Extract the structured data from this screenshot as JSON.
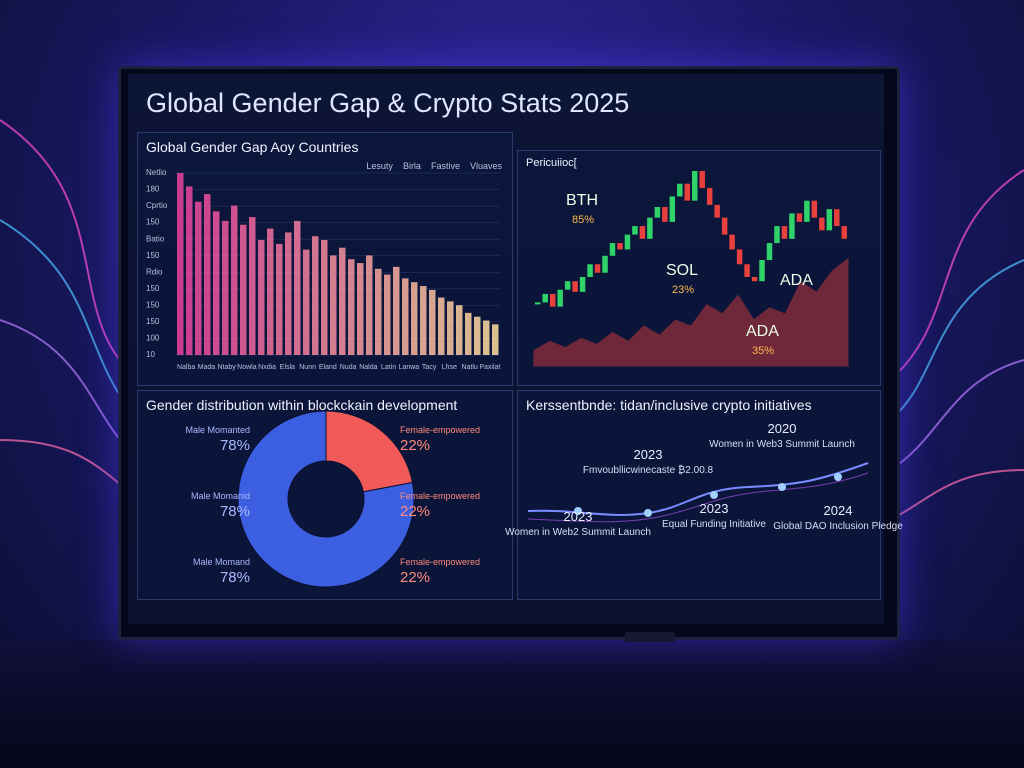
{
  "header": {
    "title": "Global Gender Gap & Crypto Stats 2025"
  },
  "bar_panel": {
    "title": "Global Gender Gap Aoy Countries",
    "legend": [
      "Lesuty",
      "Birla",
      "Fastive",
      "Vluaves"
    ],
    "y_labels": [
      "Netlio",
      "180",
      "Cprtio",
      "150",
      "Batio",
      "150",
      "Rdio",
      "150",
      "150",
      "150",
      "100",
      "10"
    ],
    "x_labels": [
      "Nalba",
      "Mada",
      "Ntaby",
      "Nowla",
      "Nxdia",
      "Elsla",
      "Nunn",
      "Eland",
      "Nuda",
      "Nalda",
      "Latin",
      "Lanwa",
      "Tacy",
      "Lhse",
      "Natlu",
      "Paxilat"
    ],
    "colors": [
      "#e0409a",
      "#f2d49a"
    ],
    "values": [
      95,
      88,
      80,
      84,
      75,
      70,
      78,
      68,
      72,
      60,
      66,
      58,
      64,
      70,
      55,
      62,
      60,
      52,
      56,
      50,
      48,
      52,
      45,
      42,
      46,
      40,
      38,
      36,
      34,
      30,
      28,
      26,
      22,
      20,
      18,
      16
    ]
  },
  "crypto_panel": {
    "title": "Pericuiioc[",
    "labels": [
      {
        "coin": "BTH",
        "change": "85%"
      },
      {
        "coin": "SOL",
        "change": "23%"
      },
      {
        "coin": "ADA",
        "change": ""
      },
      {
        "coin": "ADA",
        "change": "35%"
      }
    ],
    "up_color": "#2fd36a",
    "down_color": "#e8403c",
    "prices": [
      30,
      34,
      28,
      36,
      40,
      35,
      42,
      48,
      44,
      52,
      58,
      55,
      62,
      66,
      60,
      70,
      75,
      68,
      80,
      86,
      78,
      92,
      84,
      76,
      70,
      62,
      55,
      48,
      42,
      40,
      50,
      58,
      66,
      60,
      72,
      68,
      78,
      70,
      64,
      74,
      66,
      60
    ],
    "area": [
      10,
      16,
      12,
      18,
      14,
      22,
      16,
      26,
      20,
      30,
      26,
      40,
      34,
      46,
      30,
      38,
      34,
      55,
      48,
      62,
      70
    ]
  },
  "donut_panel": {
    "title": "Gender distribution within blockckain development",
    "segments": [
      {
        "name": "Female-empowered",
        "value": 22,
        "color": "#f25a5a"
      },
      {
        "name": "Male Momanted",
        "value": 78,
        "color": "#3b5fe0"
      }
    ],
    "left_labels": [
      {
        "name": "Male Momanted",
        "value": "78%"
      },
      {
        "name": "Male Momanid",
        "value": "78%"
      },
      {
        "name": "Male Momand",
        "value": "78%"
      }
    ],
    "right_labels": [
      {
        "name": "Female-empowered",
        "value": "22%"
      },
      {
        "name": "Female-empowered",
        "value": "22%"
      },
      {
        "name": "Female-empowered",
        "value": "22%"
      }
    ]
  },
  "timeline_panel": {
    "title": "Kerssentbnde: tidan/inclusive crypto initiatives",
    "events": [
      {
        "year": "2023",
        "text": "Women in Web2 Summit Launch"
      },
      {
        "year": "2023",
        "text": "Fmvoubllicwinecaste ₿2.00.8"
      },
      {
        "year": "2023",
        "text": "Equal Funding Initiative"
      },
      {
        "year": "2020",
        "text": "Women in Web3 Summit Launch"
      },
      {
        "year": "2024",
        "text": "Global DAO Inclusion Pledge"
      }
    ]
  }
}
